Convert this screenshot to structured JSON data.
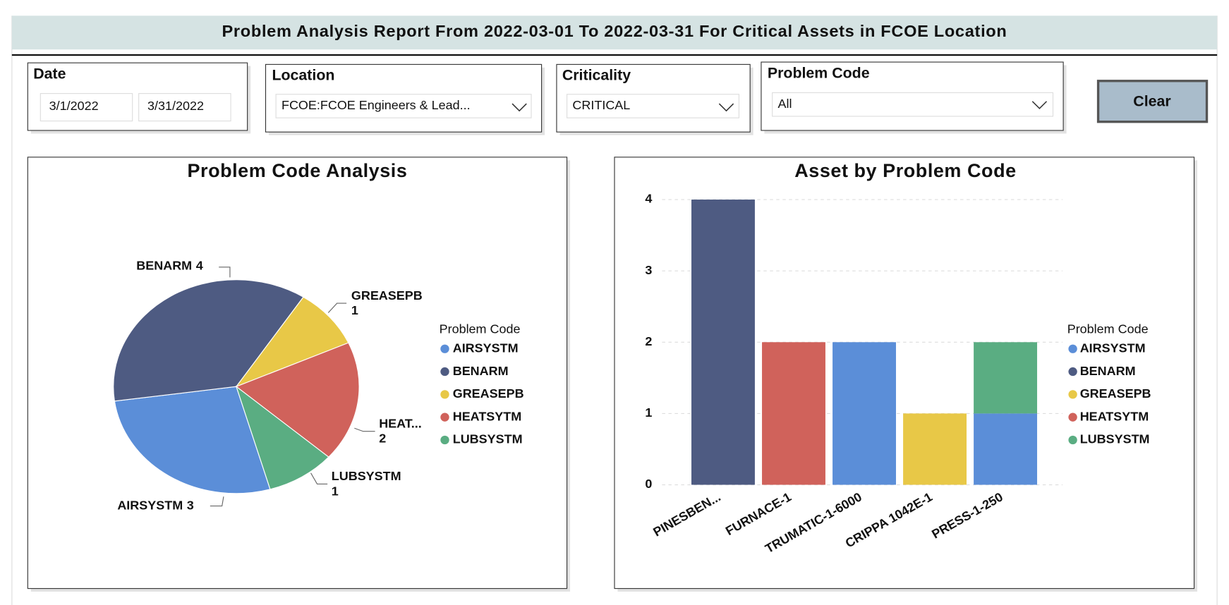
{
  "header": {
    "title": "Problem Analysis Report From 2022-03-01 To 2022-03-31 For Critical Assets in FCOE Location"
  },
  "filters": {
    "date": {
      "label": "Date",
      "start": "3/1/2022",
      "end": "3/31/2022"
    },
    "location": {
      "label": "Location",
      "value": "FCOE:FCOE Engineers & Lead..."
    },
    "criticality": {
      "label": "Criticality",
      "value": "CRITICAL"
    },
    "problem_code": {
      "label": "Problem Code",
      "value": "All"
    },
    "clear_button": "Clear"
  },
  "chart_data": [
    {
      "type": "pie",
      "title": "Problem Code Analysis",
      "categories": [
        "AIRSYSTM",
        "BENARM",
        "GREASEPB",
        "HEATSYTM",
        "LUBSYSTM"
      ],
      "slice_labels": [
        "AIRSYSTM",
        "BENARM",
        "GREASEPB",
        "HEAT...",
        "LUBSYSTM"
      ],
      "values": [
        3,
        4,
        1,
        2,
        1
      ],
      "colors": [
        "#5b8ed8",
        "#4e5b82",
        "#e8c847",
        "#d0625b",
        "#5aad82"
      ],
      "legend_title": "Problem Code"
    },
    {
      "type": "bar",
      "stacked": true,
      "title": "Asset by Problem Code",
      "categories": [
        "PINESBEN...",
        "FURNACE-1",
        "TRUMATIC-1-6000",
        "CRIPPA 1042E-1",
        "PRESS-1-250"
      ],
      "series": [
        {
          "name": "AIRSYSTM",
          "color": "#5b8ed8",
          "values": [
            null,
            null,
            2,
            null,
            1
          ]
        },
        {
          "name": "BENARM",
          "color": "#4e5b82",
          "values": [
            4,
            null,
            null,
            null,
            null
          ]
        },
        {
          "name": "GREASEPB",
          "color": "#e8c847",
          "values": [
            null,
            null,
            null,
            1,
            null
          ]
        },
        {
          "name": "HEATSYTM",
          "color": "#d0625b",
          "values": [
            null,
            2,
            null,
            null,
            null
          ]
        },
        {
          "name": "LUBSYSTM",
          "color": "#5aad82",
          "values": [
            null,
            null,
            null,
            null,
            1
          ]
        }
      ],
      "ylim": [
        0,
        4
      ],
      "yticks": [
        0,
        1,
        2,
        3,
        4
      ],
      "grid": true,
      "legend_title": "Problem Code"
    }
  ]
}
